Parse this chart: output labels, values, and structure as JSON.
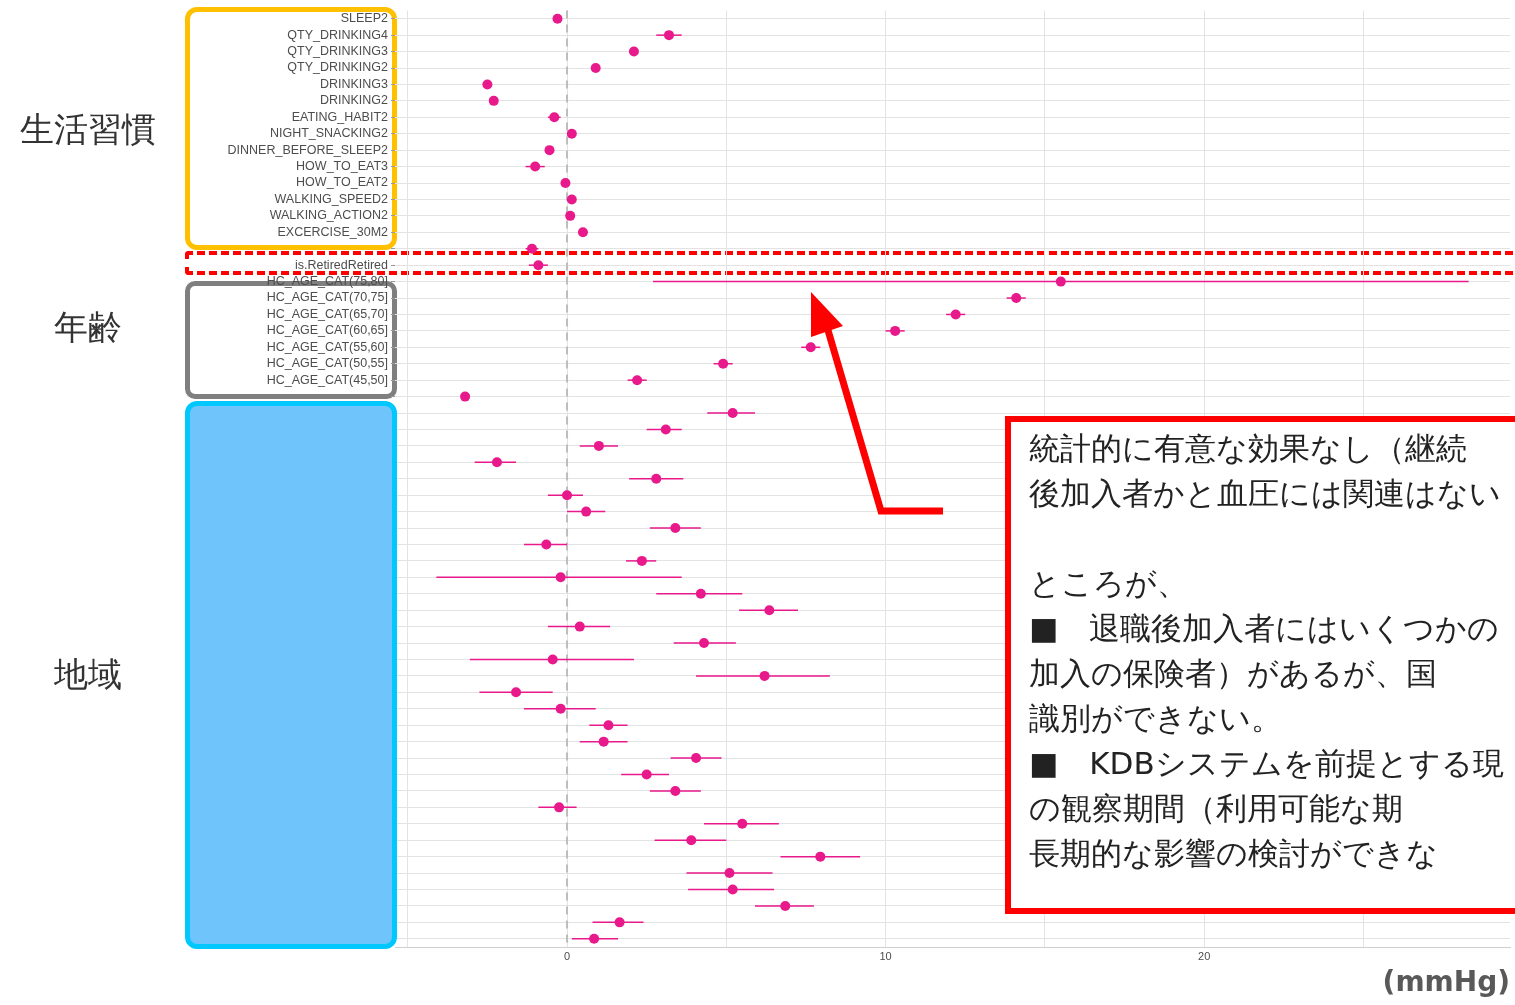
{
  "chart_data": {
    "type": "scatter",
    "orientation": "horizontal",
    "categories": [
      "SLEEP2",
      "QTY_DRINKING4",
      "QTY_DRINKING3",
      "QTY_DRINKING2",
      "DRINKING3",
      "DRINKING2",
      "EATING_HABIT2",
      "NIGHT_SNACKING2",
      "DINNER_BEFORE_SLEEP2",
      "HOW_TO_EAT3",
      "HOW_TO_EAT2",
      "WALKING_SPEED2",
      "WALKING_ACTION2",
      "EXCERCISE_30M2",
      null,
      "is.RetiredRetired",
      "HC_AGE_CAT(75,80]",
      "HC_AGE_CAT(70,75]",
      "HC_AGE_CAT(65,70]",
      "HC_AGE_CAT(60,65]",
      "HC_AGE_CAT(55,60]",
      "HC_AGE_CAT(50,55]",
      "HC_AGE_CAT(45,50]",
      null,
      null,
      null,
      null,
      null,
      null,
      null,
      null,
      null,
      null,
      null,
      null,
      null,
      null,
      null,
      null,
      null,
      null,
      null,
      null,
      null,
      null,
      null,
      null,
      null,
      null,
      null,
      null,
      null,
      null,
      null,
      null,
      null,
      null
    ],
    "series": [
      {
        "type": "scatter",
        "color": "#e8198b",
        "values": [
          -0.3,
          3.2,
          2.1,
          0.9,
          -2.5,
          -2.3,
          -0.4,
          0.15,
          -0.55,
          -1.0,
          -0.05,
          0.15,
          0.1,
          0.5,
          -1.1,
          -0.9,
          15.5,
          14.1,
          12.2,
          10.3,
          7.65,
          4.9,
          2.2,
          -3.2,
          5.2,
          3.1,
          1.0,
          -2.2,
          2.8,
          0.0,
          0.6,
          3.4,
          -0.65,
          2.35,
          -0.2,
          4.2,
          6.35,
          0.4,
          4.3,
          -0.45,
          6.2,
          -1.6,
          -0.2,
          1.3,
          1.15,
          4.05,
          2.5,
          3.4,
          -0.25,
          5.5,
          3.9,
          7.95,
          5.1,
          5.2,
          6.85,
          1.65,
          0.85
        ],
        "errors": [
          null,
          0.4,
          null,
          null,
          null,
          null,
          0.2,
          null,
          null,
          0.3,
          null,
          null,
          null,
          null,
          0.2,
          0.3,
          [
            2.7,
            28.3
          ],
          0.3,
          0.3,
          0.3,
          0.3,
          0.3,
          0.3,
          null,
          [
            4.4,
            5.9
          ],
          [
            2.5,
            3.6
          ],
          [
            0.4,
            1.6
          ],
          [
            -2.9,
            -1.6
          ],
          [
            1.95,
            3.65
          ],
          [
            -0.6,
            0.5
          ],
          [
            0.0,
            1.2
          ],
          [
            2.6,
            4.2
          ],
          [
            -1.35,
            0.0
          ],
          [
            1.85,
            2.8
          ],
          [
            -4.1,
            3.6
          ],
          [
            2.8,
            5.5
          ],
          [
            5.4,
            7.25
          ],
          [
            -0.6,
            1.35
          ],
          [
            3.35,
            5.3
          ],
          [
            -3.05,
            2.1
          ],
          [
            4.05,
            8.25
          ],
          [
            -2.75,
            -0.45
          ],
          [
            -1.35,
            0.9
          ],
          [
            0.7,
            1.9
          ],
          [
            0.4,
            1.9
          ],
          [
            3.25,
            4.85
          ],
          [
            1.7,
            3.2
          ],
          [
            2.6,
            4.2
          ],
          [
            -0.9,
            0.3
          ],
          [
            4.3,
            6.65
          ],
          [
            2.75,
            5.0
          ],
          [
            6.7,
            9.2
          ],
          [
            3.75,
            6.45
          ],
          [
            3.8,
            6.5
          ],
          [
            5.9,
            7.75
          ],
          [
            0.8,
            2.4
          ],
          [
            0.15,
            1.6
          ]
        ]
      }
    ],
    "xlim": [
      -5.4,
      29.6
    ],
    "xticks": [
      {
        "value": -5,
        "label": null
      },
      0,
      {
        "value": 5,
        "label": null
      },
      10,
      {
        "value": 15,
        "label": null
      },
      20,
      {
        "value": 25,
        "label": null
      }
    ],
    "xlabel": "(mmHg)",
    "grid": true,
    "marker": "circle",
    "ref_lines": [
      {
        "axis": "x",
        "value": 0,
        "label": null,
        "color": "#bdbdbd",
        "line_style": "dashed"
      }
    ],
    "annotations": [
      "生活習慣",
      "年齢",
      "地域",
      "統計的に有意な効果なし（継続",
      "後加入者かと血圧には関連はない",
      "ところが、",
      "■　退職後加入者にはいくつかの",
      "加入の保険者）があるが、国",
      "識別ができない。",
      "■　KDBシステムを前提とする現",
      "の観察期間（利用可能な期",
      "長期的な影響の検討ができな"
    ]
  }
}
